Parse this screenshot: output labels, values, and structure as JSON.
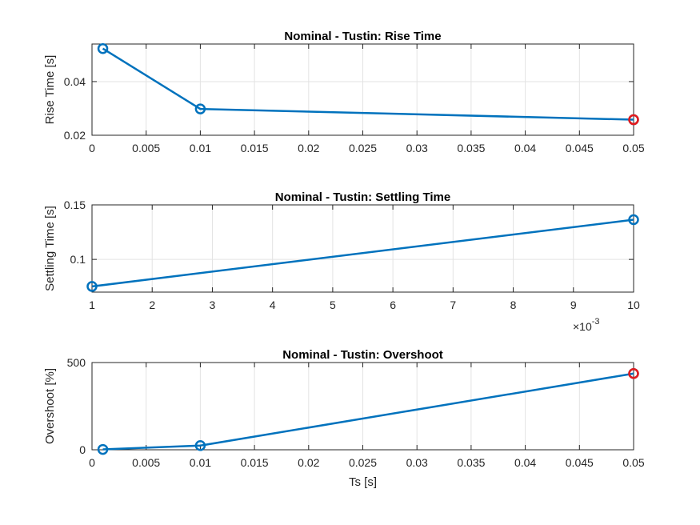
{
  "chart_data": [
    {
      "type": "line",
      "title": "Nominal - Tustin: Rise Time",
      "xlabel": "",
      "ylabel": "Rise Time [s]",
      "xlim": [
        0,
        0.05
      ],
      "ylim": [
        0.02,
        0.054
      ],
      "xticks": [
        0,
        0.005,
        0.01,
        0.015,
        0.02,
        0.025,
        0.03,
        0.035,
        0.04,
        0.045,
        0.05
      ],
      "xtick_labels": [
        "0",
        "0.005",
        "0.01",
        "0.015",
        "0.02",
        "0.025",
        "0.03",
        "0.035",
        "0.04",
        "0.045",
        "0.05"
      ],
      "yticks": [
        0.02,
        0.04
      ],
      "ytick_labels": [
        "0.02",
        "0.04"
      ],
      "x_exponent_label": "",
      "grid": true,
      "series": [
        {
          "x": [
            0.001,
            0.01,
            0.05
          ],
          "y": [
            0.0523,
            0.0298,
            0.0258
          ],
          "color": "#0072bd"
        }
      ],
      "highlight": {
        "x": 0.05,
        "y": 0.0258,
        "color": "#e41a1c"
      }
    },
    {
      "type": "line",
      "title": "Nominal - Tustin: Settling Time",
      "xlabel": "",
      "ylabel": "Settling Time [s]",
      "xlim": [
        1,
        10
      ],
      "ylim": [
        0.07,
        0.15
      ],
      "xticks": [
        1,
        2,
        3,
        4,
        5,
        6,
        7,
        8,
        9,
        10
      ],
      "xtick_labels": [
        "1",
        "2",
        "3",
        "4",
        "5",
        "6",
        "7",
        "8",
        "9",
        "10"
      ],
      "yticks": [
        0.1,
        0.15
      ],
      "ytick_labels": [
        "0.1",
        "0.15"
      ],
      "x_exponent_label": "×10",
      "x_exponent_power": "-3",
      "grid": true,
      "series": [
        {
          "x": [
            1,
            10
          ],
          "y": [
            0.0752,
            0.1364
          ],
          "color": "#0072bd"
        }
      ],
      "highlight": null
    },
    {
      "type": "line",
      "title": "Nominal - Tustin: Overshoot",
      "xlabel": "Ts [s]",
      "ylabel": "Overshoot [%]",
      "xlim": [
        0,
        0.05
      ],
      "ylim": [
        0,
        500
      ],
      "xticks": [
        0,
        0.005,
        0.01,
        0.015,
        0.02,
        0.025,
        0.03,
        0.035,
        0.04,
        0.045,
        0.05
      ],
      "xtick_labels": [
        "0",
        "0.005",
        "0.01",
        "0.015",
        "0.02",
        "0.025",
        "0.03",
        "0.035",
        "0.04",
        "0.045",
        "0.05"
      ],
      "yticks": [
        0,
        500
      ],
      "ytick_labels": [
        "0",
        "500"
      ],
      "x_exponent_label": "",
      "grid": true,
      "series": [
        {
          "x": [
            0.001,
            0.01,
            0.05
          ],
          "y": [
            2,
            24,
            437
          ],
          "color": "#0072bd"
        }
      ],
      "highlight": {
        "x": 0.05,
        "y": 437,
        "color": "#e41a1c"
      }
    }
  ]
}
